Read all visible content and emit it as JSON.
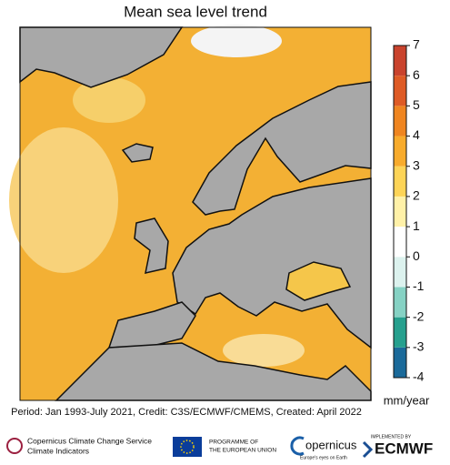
{
  "title": "Mean sea level trend",
  "colorbar": {
    "lim": [
      -4,
      7
    ],
    "ticks": [
      -4,
      -3,
      -2,
      -1,
      0,
      1,
      2,
      3,
      4,
      5,
      6,
      7
    ],
    "colors": [
      "#1b6a9a",
      "#26a08e",
      "#86d2c4",
      "#dcf2ee",
      "#ffffff",
      "#fff1a8",
      "#fdd457",
      "#f8ab2c",
      "#ef8520",
      "#de5b25",
      "#c9432d"
    ],
    "unit": "mm/year"
  },
  "credit": "Period: Jan 1993-July 2021, Credit: C3S/ECMWF/CMEMS, Created: April 2022",
  "footer": {
    "c3s": [
      "Copernicus Climate Change Service",
      "Climate Indicators"
    ],
    "eu": [
      "PROGRAMME OF",
      "THE EUROPEAN UNION"
    ],
    "copernicus": [
      "opernicus",
      "Europe's eyes on Earth"
    ],
    "ecmwf": [
      "IMPLEMENTED BY",
      "ECMWF"
    ]
  }
}
